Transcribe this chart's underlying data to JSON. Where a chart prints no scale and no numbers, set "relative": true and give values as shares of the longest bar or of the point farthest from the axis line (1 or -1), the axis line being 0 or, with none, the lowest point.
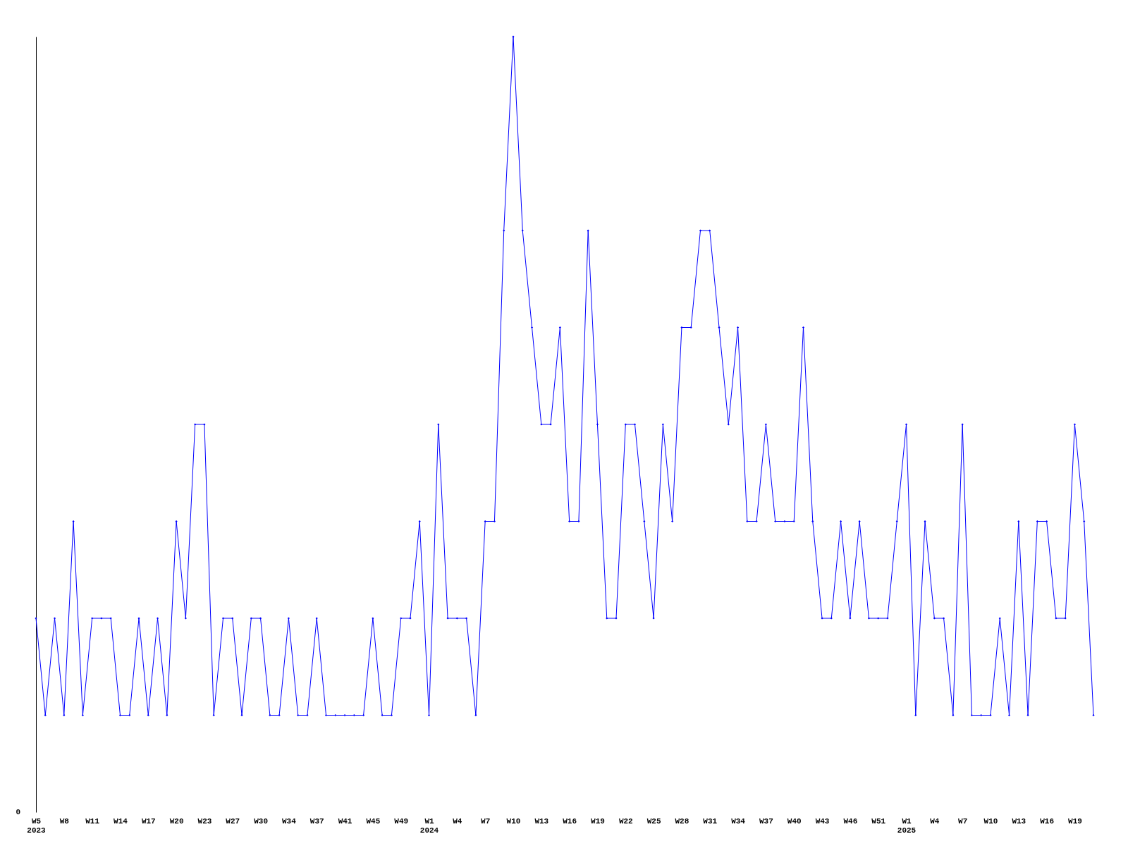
{
  "chart_data": {
    "type": "line",
    "relative": true,
    "marker": "diamond",
    "line_style": "solid",
    "annotations": [
      "0"
    ],
    "categories": [
      "W5\n2023",
      null,
      null,
      "W8",
      null,
      null,
      "W11",
      null,
      null,
      "W14",
      null,
      null,
      "W17",
      null,
      null,
      "W20",
      null,
      null,
      "W23",
      null,
      null,
      "W27",
      null,
      null,
      "W30",
      null,
      null,
      "W34",
      null,
      null,
      "W37",
      null,
      null,
      "W41",
      null,
      null,
      "W45",
      null,
      null,
      "W49",
      null,
      null,
      "W1\n2024",
      null,
      null,
      "W4",
      null,
      null,
      "W7",
      null,
      null,
      "W10",
      null,
      null,
      "W13",
      null,
      null,
      "W16",
      null,
      null,
      "W19",
      null,
      null,
      "W22",
      null,
      null,
      "W25",
      null,
      null,
      "W28",
      null,
      null,
      "W31",
      null,
      null,
      "W34",
      null,
      null,
      "W37",
      null,
      null,
      "W40",
      null,
      null,
      "W43",
      null,
      null,
      "W46",
      null,
      null,
      "W51",
      null,
      null,
      "W1\n2025",
      null,
      null,
      "W4",
      null,
      null,
      "W7",
      null,
      null,
      "W10",
      null,
      null,
      "W13",
      null,
      null,
      "W16",
      null,
      null,
      "W19",
      null,
      null
    ],
    "series": [
      {
        "color": "#0000ff",
        "values": [
          0.25,
          0.125,
          0.25,
          0.125,
          0.375,
          0.125,
          0.25,
          0.25,
          0.25,
          0.125,
          0.125,
          0.25,
          0.125,
          0.25,
          0.125,
          0.375,
          0.25,
          0.5,
          0.5,
          0.125,
          0.25,
          0.25,
          0.125,
          0.25,
          0.25,
          0.125,
          0.125,
          0.25,
          0.125,
          0.125,
          0.25,
          0.125,
          0.125,
          0.125,
          0.125,
          0.125,
          0.25,
          0.125,
          0.125,
          0.25,
          0.25,
          0.375,
          0.125,
          0.5,
          0.25,
          0.25,
          0.25,
          0.125,
          0.375,
          0.375,
          0.75,
          1,
          0.75,
          0.625,
          0.5,
          0.5,
          0.625,
          0.375,
          0.375,
          0.75,
          0.5,
          0.25,
          0.25,
          0.5,
          0.5,
          0.375,
          0.25,
          0.5,
          0.375,
          0.625,
          0.625,
          0.75,
          0.75,
          0.625,
          0.5,
          0.625,
          0.375,
          0.375,
          0.5,
          0.375,
          0.375,
          0.375,
          0.625,
          0.375,
          0.25,
          0.25,
          0.375,
          0.25,
          0.375,
          0.25,
          0.25,
          0.25,
          0.375,
          0.5,
          0.125,
          0.375,
          0.25,
          0.25,
          0.125,
          0.5,
          0.125,
          0.125,
          0.125,
          0.25,
          0.125,
          0.375,
          0.125,
          0.375,
          0.375,
          0.25,
          0.25,
          0.5,
          0.375,
          0.125
        ]
      }
    ]
  }
}
